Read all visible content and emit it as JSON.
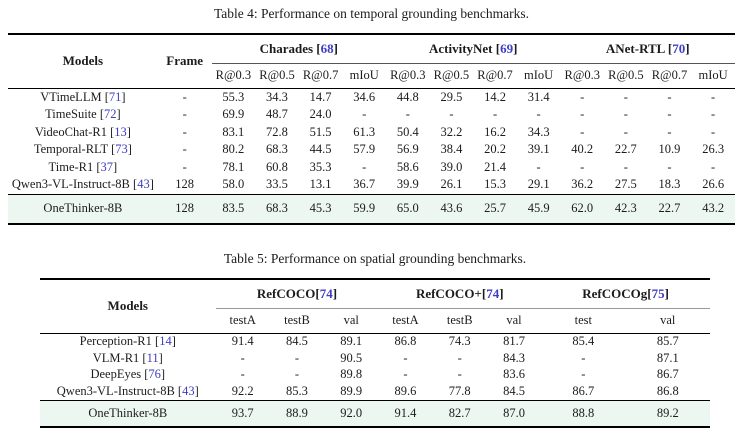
{
  "colors": {
    "citation": "#3d3dc4",
    "highlight_row_bg": "#edf7f1"
  },
  "table4": {
    "caption": "Table 4: Performance on temporal grounding benchmarks.",
    "row_headers": [
      "Models",
      "Frame"
    ],
    "groups": [
      {
        "name": "Charades",
        "cite": "68",
        "sep": " ",
        "subcols": [
          "R@0.3",
          "R@0.5",
          "R@0.7",
          "mIoU"
        ]
      },
      {
        "name": "ActivityNet",
        "cite": "69",
        "sep": " ",
        "subcols": [
          "R@0.3",
          "R@0.5",
          "R@0.7",
          "mIoU"
        ]
      },
      {
        "name": "ANet-RTL",
        "cite": "70",
        "sep": " ",
        "subcols": [
          "R@0.3",
          "R@0.5",
          "R@0.7",
          "mIoU"
        ]
      }
    ],
    "rows": [
      {
        "model": "VTimeLLM",
        "cite": "71",
        "frame": "-",
        "values": [
          "55.3",
          "34.3",
          "14.7",
          "34.6",
          "44.8",
          "29.5",
          "14.2",
          "31.4",
          "-",
          "-",
          "-",
          "-"
        ],
        "bold": []
      },
      {
        "model": "TimeSuite",
        "cite": "72",
        "frame": "-",
        "values": [
          "69.9",
          "48.7",
          "24.0",
          "-",
          "-",
          "-",
          "-",
          "-",
          "-",
          "-",
          "-",
          "-"
        ],
        "bold": []
      },
      {
        "model": "VideoChat-R1",
        "cite": "13",
        "frame": "-",
        "values": [
          "83.1",
          "72.8",
          "51.5",
          "61.3",
          "50.4",
          "32.2",
          "16.2",
          "34.3",
          "-",
          "-",
          "-",
          "-"
        ],
        "bold": [
          1,
          2,
          3
        ]
      },
      {
        "model": "Temporal-RLT",
        "cite": "73",
        "frame": "-",
        "values": [
          "80.2",
          "68.3",
          "44.5",
          "57.9",
          "56.9",
          "38.4",
          "20.2",
          "39.1",
          "40.2",
          "22.7",
          "10.9",
          "26.3"
        ],
        "bold": []
      },
      {
        "model": "Time-R1",
        "cite": "37",
        "frame": "-",
        "values": [
          "78.1",
          "60.8",
          "35.3",
          "-",
          "58.6",
          "39.0",
          "21.4",
          "-",
          "-",
          "-",
          "-",
          "-"
        ],
        "bold": []
      },
      {
        "model": "Qwen3-VL-Instruct-8B",
        "cite": "43",
        "frame": "128",
        "values": [
          "58.0",
          "33.5",
          "13.1",
          "36.7",
          "39.9",
          "26.1",
          "15.3",
          "29.1",
          "36.2",
          "27.5",
          "18.3",
          "26.6"
        ],
        "bold": []
      }
    ],
    "highlight_row": {
      "model": "OneThinker-8B",
      "cite": null,
      "frame": "128",
      "values": [
        "83.5",
        "68.3",
        "45.3",
        "59.9",
        "65.0",
        "43.6",
        "25.7",
        "45.9",
        "62.0",
        "42.3",
        "22.7",
        "43.2"
      ],
      "bold": [
        0,
        4,
        5,
        6,
        7,
        8,
        9,
        10,
        11
      ]
    }
  },
  "table5": {
    "caption": "Table 5: Performance on spatial grounding benchmarks.",
    "row_headers": [
      "Models"
    ],
    "groups": [
      {
        "name": "RefCOCO",
        "cite": "74",
        "sep": "",
        "subcols": [
          "testA",
          "testB",
          "val"
        ]
      },
      {
        "name": "RefCOCO+",
        "cite": "74",
        "sep": "",
        "subcols": [
          "testA",
          "testB",
          "val"
        ]
      },
      {
        "name": "RefCOCOg",
        "cite": "75",
        "sep": "",
        "subcols": [
          "test",
          "val"
        ]
      }
    ],
    "rows": [
      {
        "model": "Perception-R1",
        "cite": "14",
        "values": [
          "91.4",
          "84.5",
          "89.1",
          "86.8",
          "74.3",
          "81.7",
          "85.4",
          "85.7"
        ],
        "bold": []
      },
      {
        "model": "VLM-R1",
        "cite": "11",
        "values": [
          "-",
          "-",
          "90.5",
          "-",
          "-",
          "84.3",
          "-",
          "87.1"
        ],
        "bold": []
      },
      {
        "model": "DeepEyes",
        "cite": "76",
        "values": [
          "-",
          "-",
          "89.8",
          "-",
          "-",
          "83.6",
          "-",
          "86.7"
        ],
        "bold": []
      },
      {
        "model": "Qwen3-VL-Instruct-8B",
        "cite": "43",
        "values": [
          "92.2",
          "85.3",
          "89.9",
          "89.6",
          "77.8",
          "84.5",
          "86.7",
          "86.8"
        ],
        "bold": []
      }
    ],
    "highlight_row": {
      "model": "OneThinker-8B",
      "cite": null,
      "values": [
        "93.7",
        "88.9",
        "92.0",
        "91.4",
        "82.7",
        "87.0",
        "88.8",
        "89.2"
      ],
      "bold": [
        0,
        1,
        2,
        3,
        4,
        5,
        6,
        7
      ]
    }
  }
}
